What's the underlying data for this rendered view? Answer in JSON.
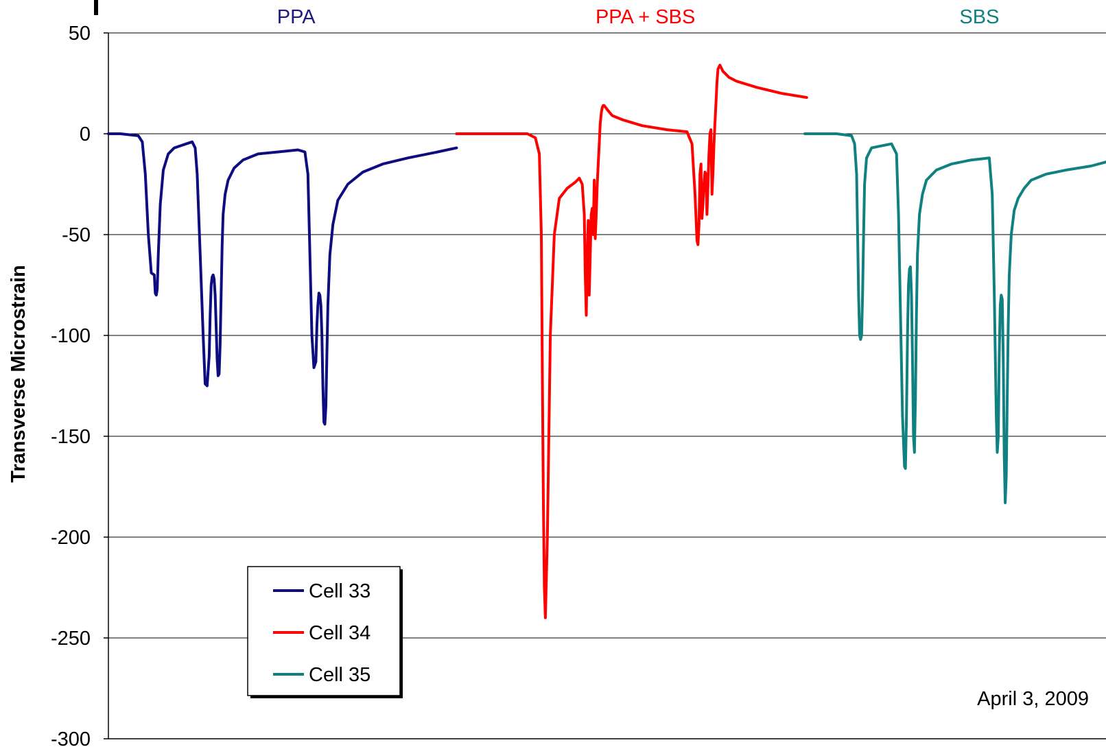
{
  "chart_data": {
    "type": "line",
    "title": "",
    "xlabel": "",
    "ylabel": "Transverse Microstrain",
    "ylim": [
      -300,
      50
    ],
    "yticks": [
      50,
      0,
      -50,
      -100,
      -150,
      -200,
      -250,
      -300
    ],
    "ytick_labels": [
      "50",
      "0",
      "-50",
      "-100",
      "-150",
      "-200",
      "-250",
      "-300"
    ],
    "xlim": [
      0,
      1000
    ],
    "grid": true,
    "legend_position": "lower-left",
    "group_labels": [
      {
        "text": "PPA",
        "color": "#1a1a80"
      },
      {
        "text": "PPA + SBS",
        "color": "#ff0000"
      },
      {
        "text": "SBS",
        "color": "#138080"
      }
    ],
    "annotation": "April 3, 2009",
    "series": [
      {
        "name": "Cell 33",
        "color": "#0d0d80",
        "x": [
          0,
          12,
          30,
          34,
          37,
          40,
          43,
          46,
          47,
          48,
          49,
          50,
          52,
          55,
          60,
          66,
          72,
          78,
          84,
          87,
          89,
          92,
          95,
          97,
          99,
          101,
          102,
          103,
          104,
          105,
          106,
          107,
          108,
          109,
          110,
          111,
          112,
          113,
          114,
          115,
          117,
          120,
          126,
          135,
          150,
          170,
          190,
          197,
          200,
          202,
          204,
          206,
          208,
          209,
          210,
          211,
          212,
          213,
          214,
          215,
          216,
          217,
          218,
          219,
          220,
          222,
          225,
          230,
          240,
          255,
          275,
          300,
          330,
          349
        ],
        "y": [
          0,
          0,
          -1,
          -4,
          -20,
          -50,
          -69,
          -70,
          -79,
          -80,
          -77,
          -60,
          -35,
          -18,
          -10,
          -7,
          -6,
          -5,
          -4,
          -7,
          -20,
          -60,
          -100,
          -124,
          -125,
          -110,
          -90,
          -75,
          -71,
          -70,
          -72,
          -80,
          -95,
          -112,
          -120,
          -119,
          -105,
          -80,
          -55,
          -40,
          -30,
          -23,
          -17,
          -13,
          -10,
          -9,
          -8,
          -9,
          -20,
          -60,
          -100,
          -116,
          -113,
          -95,
          -85,
          -79,
          -80,
          -85,
          -100,
          -125,
          -143,
          -144,
          -135,
          -110,
          -85,
          -60,
          -45,
          -33,
          -25,
          -19,
          -15,
          -12,
          -9,
          -7
        ]
      },
      {
        "name": "Cell 34",
        "color": "#ff0000",
        "x": [
          349,
          400,
          420,
          428,
          432,
          434,
          435,
          436,
          437,
          438,
          440,
          443,
          447,
          452,
          460,
          468,
          472,
          475,
          477,
          478,
          479,
          480,
          481,
          482,
          483,
          484,
          485,
          486,
          487,
          488,
          489,
          490,
          491,
          492,
          493,
          494,
          495,
          496,
          497,
          500,
          505,
          515,
          535,
          560,
          580,
          585,
          588,
          590,
          591,
          592,
          593,
          594,
          595,
          596,
          597,
          598,
          599,
          600,
          601,
          602,
          603,
          604,
          605,
          606,
          607,
          608,
          609,
          610,
          611,
          612,
          613,
          614,
          616,
          618,
          622,
          630,
          650,
          675,
          700
        ],
        "y": [
          0,
          0,
          0,
          -2,
          -10,
          -50,
          -120,
          -180,
          -225,
          -240,
          -200,
          -100,
          -50,
          -32,
          -27,
          -24,
          -22,
          -25,
          -40,
          -70,
          -90,
          -60,
          -43,
          -80,
          -60,
          -40,
          -37,
          -50,
          -23,
          -52,
          -40,
          -25,
          -15,
          -5,
          5,
          10,
          13,
          14,
          14,
          12,
          9,
          7,
          4,
          2,
          1,
          -5,
          -30,
          -53,
          -55,
          -45,
          -20,
          -15,
          -42,
          -35,
          -25,
          -19,
          -20,
          -40,
          -25,
          -10,
          0,
          2,
          -30,
          -20,
          -5,
          5,
          15,
          25,
          32,
          33,
          34,
          33,
          31,
          30,
          28,
          26,
          23,
          20,
          18
        ]
      },
      {
        "name": "Cell 35",
        "color": "#108080",
        "x": [
          698,
          730,
          745,
          748,
          750,
          751,
          752,
          753,
          754,
          755,
          756,
          757,
          758,
          760,
          765,
          775,
          785,
          790,
          792,
          794,
          796,
          798,
          799,
          800,
          801,
          802,
          803,
          804,
          805,
          806,
          807,
          808,
          809,
          810,
          811,
          813,
          816,
          820,
          830,
          845,
          865,
          883,
          886,
          888,
          890,
          891,
          892,
          893,
          894,
          895,
          896,
          897,
          898,
          899,
          900,
          901,
          902,
          903,
          905,
          908,
          912,
          918,
          925,
          940,
          960,
          985,
          1000
        ],
        "y": [
          0,
          0,
          -1,
          -5,
          -20,
          -50,
          -80,
          -100,
          -102,
          -100,
          -80,
          -50,
          -25,
          -12,
          -7,
          -6,
          -5,
          -10,
          -40,
          -90,
          -140,
          -165,
          -166,
          -140,
          -100,
          -75,
          -67,
          -66,
          -80,
          -110,
          -150,
          -158,
          -130,
          -90,
          -60,
          -40,
          -30,
          -23,
          -18,
          -15,
          -13,
          -12,
          -30,
          -80,
          -140,
          -158,
          -150,
          -110,
          -85,
          -80,
          -82,
          -110,
          -160,
          -183,
          -170,
          -130,
          -95,
          -70,
          -50,
          -38,
          -32,
          -27,
          -23,
          -20,
          -18,
          -16,
          -14
        ]
      }
    ]
  }
}
